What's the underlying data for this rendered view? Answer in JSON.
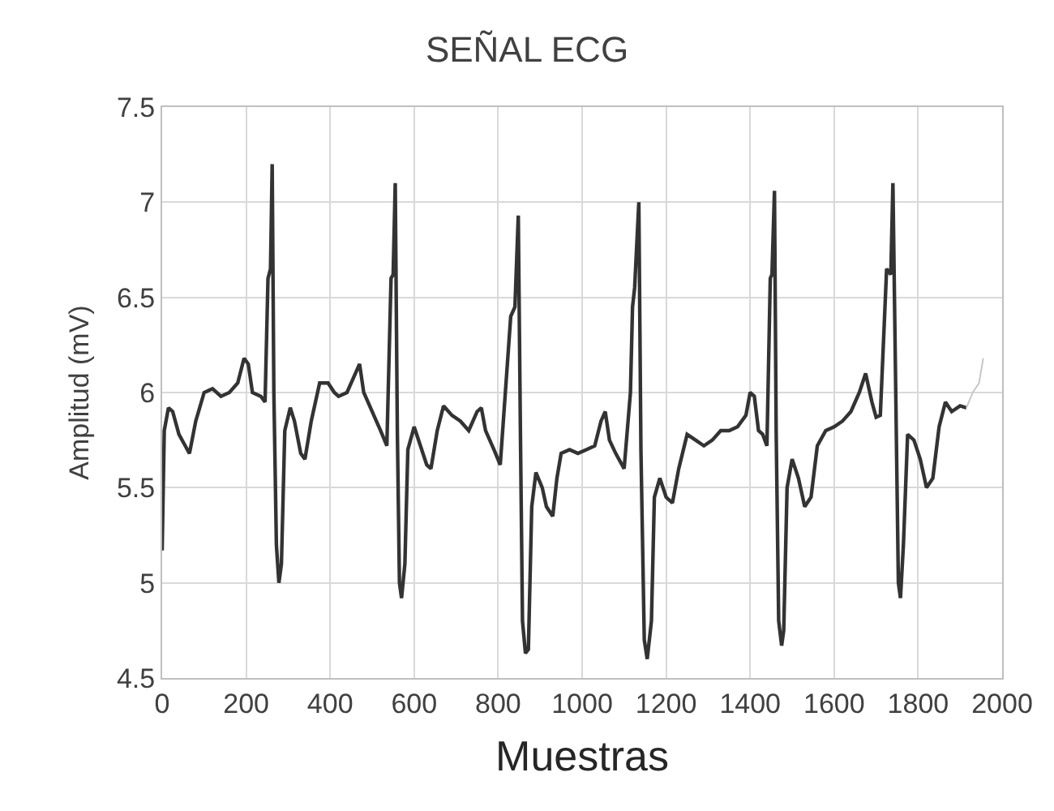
{
  "chart_data": {
    "type": "line",
    "title": "SEÑAL ECG",
    "xlabel": "Muestras",
    "ylabel": "Amplitud (mV)",
    "xlim": [
      0,
      2000
    ],
    "xticks": [
      0,
      200,
      400,
      600,
      800,
      1000,
      1200,
      1400,
      1600,
      1800,
      2000
    ],
    "ylim": [
      4.5,
      7.5
    ],
    "yticks": [
      4.5,
      5,
      5.5,
      6,
      6.5,
      7,
      7.5
    ],
    "grid": true,
    "marker": "none",
    "line_style": "solid",
    "series": [
      {
        "color": "#333333",
        "x": [
          0,
          5,
          15,
          25,
          40,
          55,
          65,
          80,
          100,
          120,
          140,
          160,
          180,
          195,
          205,
          215,
          235,
          245,
          252,
          258,
          262,
          266,
          272,
          278,
          284,
          292,
          305,
          315,
          330,
          340,
          355,
          375,
          395,
          410,
          420,
          440,
          460,
          470,
          480,
          500,
          520,
          535,
          545,
          550,
          555,
          560,
          565,
          570,
          578,
          585,
          600,
          615,
          630,
          640,
          655,
          670,
          690,
          710,
          730,
          750,
          760,
          770,
          790,
          805,
          830,
          840,
          848,
          853,
          858,
          865,
          872,
          880,
          890,
          905,
          915,
          930,
          940,
          950,
          970,
          990,
          1010,
          1030,
          1045,
          1055,
          1065,
          1080,
          1100,
          1115,
          1120,
          1125,
          1135,
          1140,
          1148,
          1155,
          1165,
          1172,
          1185,
          1200,
          1215,
          1230,
          1250,
          1270,
          1290,
          1310,
          1330,
          1350,
          1370,
          1390,
          1400,
          1410,
          1420,
          1430,
          1440,
          1448,
          1452,
          1458,
          1462,
          1468,
          1475,
          1480,
          1488,
          1500,
          1515,
          1530,
          1545,
          1560,
          1580,
          1600,
          1620,
          1640,
          1660,
          1675,
          1690,
          1700,
          1710,
          1725,
          1735,
          1740,
          1748,
          1753,
          1758,
          1765,
          1775,
          1790,
          1805,
          1820,
          1835,
          1850,
          1865,
          1880,
          1900,
          1915
        ],
        "values": [
          5.17,
          5.8,
          5.92,
          5.9,
          5.78,
          5.72,
          5.68,
          5.85,
          6.0,
          6.02,
          5.98,
          6.0,
          6.05,
          6.18,
          6.15,
          6.0,
          5.98,
          5.95,
          6.6,
          6.65,
          7.2,
          6.0,
          5.2,
          5.0,
          5.1,
          5.8,
          5.92,
          5.85,
          5.68,
          5.65,
          5.85,
          6.05,
          6.05,
          6.0,
          5.98,
          6.0,
          6.1,
          6.15,
          6.0,
          5.9,
          5.8,
          5.72,
          6.6,
          6.62,
          7.1,
          5.8,
          5.0,
          4.92,
          5.1,
          5.7,
          5.82,
          5.72,
          5.62,
          5.6,
          5.8,
          5.93,
          5.88,
          5.85,
          5.8,
          5.9,
          5.92,
          5.8,
          5.7,
          5.62,
          6.4,
          6.45,
          6.93,
          5.8,
          4.8,
          4.63,
          4.65,
          5.4,
          5.58,
          5.5,
          5.4,
          5.35,
          5.55,
          5.68,
          5.7,
          5.68,
          5.7,
          5.72,
          5.85,
          5.9,
          5.75,
          5.68,
          5.6,
          6.0,
          6.45,
          6.55,
          7.0,
          5.7,
          4.7,
          4.6,
          4.8,
          5.45,
          5.55,
          5.45,
          5.42,
          5.6,
          5.78,
          5.75,
          5.72,
          5.75,
          5.8,
          5.8,
          5.82,
          5.88,
          6.0,
          5.98,
          5.8,
          5.78,
          5.72,
          6.6,
          6.62,
          7.06,
          5.8,
          4.8,
          4.67,
          4.75,
          5.5,
          5.65,
          5.55,
          5.4,
          5.45,
          5.72,
          5.8,
          5.82,
          5.85,
          5.9,
          6.0,
          6.1,
          5.95,
          5.87,
          5.88,
          6.65,
          6.62,
          7.1,
          5.8,
          5.0,
          4.92,
          5.2,
          5.78,
          5.75,
          5.65,
          5.5,
          5.55,
          5.82,
          5.95,
          5.9,
          5.93,
          5.92
        ]
      },
      {
        "color": "#c8c8c8",
        "x": [
          1915,
          1930,
          1945,
          1955
        ],
        "values": [
          5.92,
          6.0,
          6.05,
          6.18
        ]
      }
    ]
  }
}
